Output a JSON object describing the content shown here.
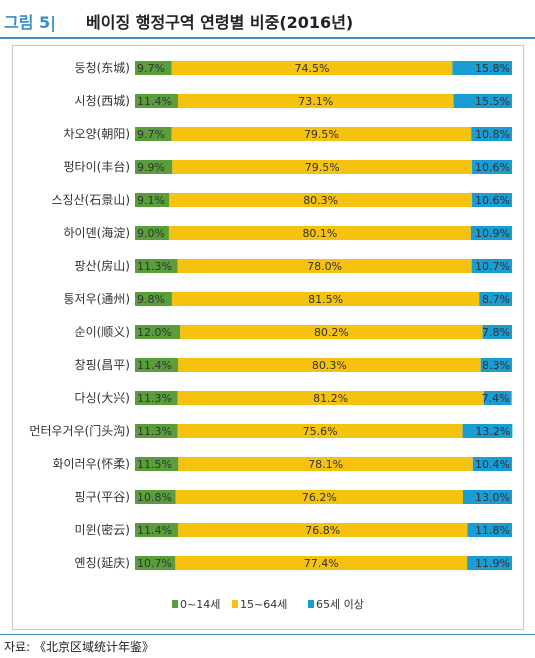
{
  "figure": {
    "label": "그림 5|",
    "title": "베이징 행정구역 연령별 비중(2016년)",
    "source": "자료: 《北京区域统计年鉴》"
  },
  "chart_data": {
    "type": "bar",
    "orientation": "horizontal",
    "stacked": true,
    "unit": "%",
    "categories": [
      "둥청(东城)",
      "시청(西城)",
      "차오양(朝阳)",
      "펑타이(丰台)",
      "스징산(石景山)",
      "하이뎬(海淀)",
      "팡산(房山)",
      "퉁저우(通州)",
      "순이(顺义)",
      "창핑(昌平)",
      "다싱(大兴)",
      "먼터우거우(门头沟)",
      "화이러우(怀柔)",
      "핑구(平谷)",
      "미윈(密云)",
      "옌칭(延庆)"
    ],
    "series": [
      {
        "name": "0~14세",
        "color": "#5a9e3c",
        "values": [
          9.7,
          11.4,
          9.7,
          9.9,
          9.1,
          9.0,
          11.3,
          9.8,
          12.0,
          11.4,
          11.3,
          11.3,
          11.5,
          10.8,
          11.4,
          10.7
        ],
        "labels": [
          "9.7%",
          "11.4%",
          "9.7%",
          "9.9%",
          "9.1%",
          "9.0%",
          "11.3%",
          "9.8%",
          "12.0%",
          "11.4%",
          "11.3%",
          "11.3%",
          "11.5%",
          "10.8%",
          "11.4%",
          "10.7%"
        ]
      },
      {
        "name": "15~64세",
        "color": "#f5c210",
        "values": [
          74.5,
          73.1,
          79.5,
          79.5,
          80.3,
          80.1,
          78.0,
          81.5,
          80.2,
          80.3,
          81.2,
          75.6,
          78.1,
          76.2,
          76.8,
          77.4
        ],
        "labels": [
          "74.5%",
          "73.1%",
          "79.5%",
          "79.5%",
          "80.3%",
          "80.1%",
          "78.0%",
          "81.5%",
          "80.2%",
          "80.3%",
          "81.2%",
          "75.6%",
          "78.1%",
          "76.2%",
          "76.8%",
          "77.4%"
        ]
      },
      {
        "name": "65세 이상",
        "color": "#1a9cd4",
        "values": [
          15.8,
          15.5,
          10.8,
          10.6,
          10.6,
          10.9,
          10.7,
          8.7,
          7.8,
          8.3,
          7.4,
          13.2,
          10.4,
          13.0,
          11.8,
          11.9
        ],
        "labels": [
          "15.8%",
          "15.5%",
          "10.8%",
          "10.6%",
          "10.6%",
          "10.9%",
          "10.7%",
          "8.7%",
          "7.8%",
          "8.3%",
          "7.4%",
          "13.2%",
          "10.4%",
          "13.0%",
          "11.8%",
          "11.9%"
        ]
      }
    ],
    "xlim": [
      0,
      100
    ],
    "legend_position": "bottom",
    "grid": false
  }
}
